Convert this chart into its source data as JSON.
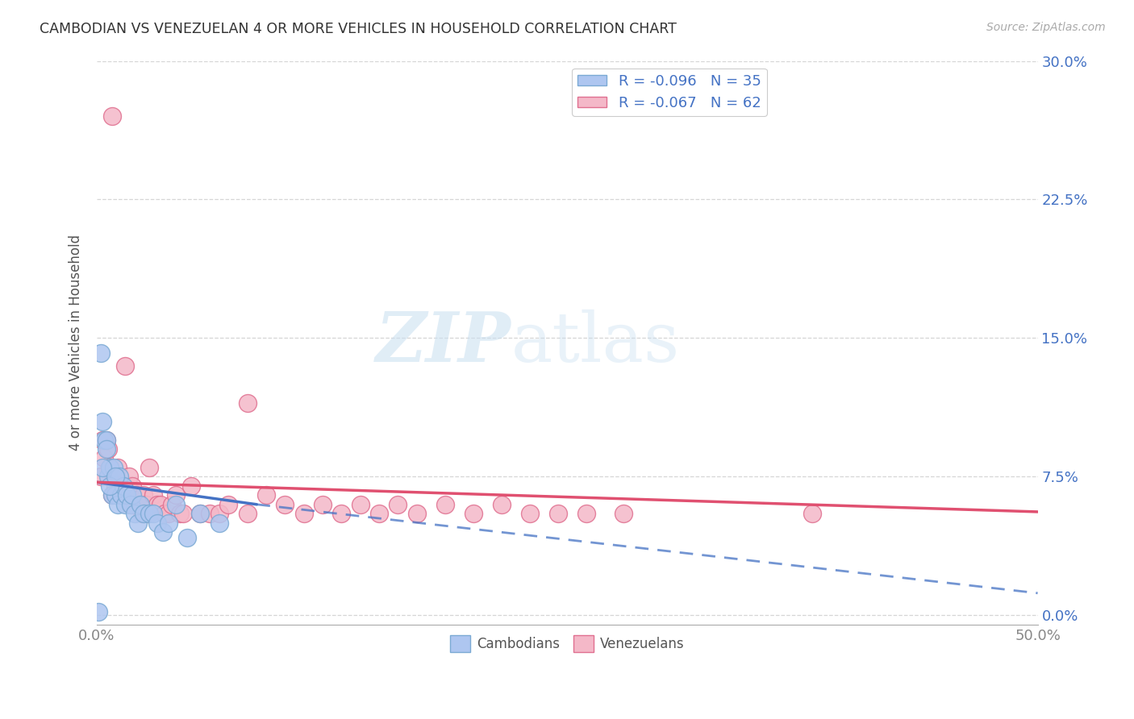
{
  "title": "CAMBODIAN VS VENEZUELAN 4 OR MORE VEHICLES IN HOUSEHOLD CORRELATION CHART",
  "source": "Source: ZipAtlas.com",
  "ylabel": "4 or more Vehicles in Household",
  "xlim": [
    0.0,
    0.5
  ],
  "ylim": [
    -0.005,
    0.3
  ],
  "xticks": [
    0.0,
    0.5
  ],
  "xticklabels": [
    "0.0%",
    "50.0%"
  ],
  "yticks": [
    0.0,
    0.075,
    0.15,
    0.225,
    0.3
  ],
  "yticklabels": [
    "0.0%",
    "7.5%",
    "15.0%",
    "22.5%",
    "30.0%"
  ],
  "cambodian_color": "#aec6f0",
  "venezuelan_color": "#f4b8c8",
  "cambodian_edge": "#7baad4",
  "venezuelan_edge": "#e07090",
  "trend_cambodian": "#4472c4",
  "trend_venezuelan": "#e05070",
  "legend_R_cambodian": "R = -0.096",
  "legend_N_cambodian": "N = 35",
  "legend_R_venezuelan": "R = -0.067",
  "legend_N_venezuelan": "N = 62",
  "watermark_zip": "ZIP",
  "watermark_atlas": "atlas",
  "background_color": "#ffffff",
  "grid_color": "#cccccc",
  "axis_label_color": "#4472c4",
  "tick_color": "#888888",
  "cambodian_points_x": [
    0.002,
    0.003,
    0.004,
    0.005,
    0.006,
    0.007,
    0.008,
    0.009,
    0.01,
    0.011,
    0.012,
    0.013,
    0.014,
    0.015,
    0.016,
    0.018,
    0.019,
    0.02,
    0.022,
    0.023,
    0.025,
    0.028,
    0.03,
    0.032,
    0.035,
    0.038,
    0.042,
    0.048,
    0.055,
    0.065,
    0.001,
    0.003,
    0.005,
    0.007,
    0.01
  ],
  "cambodian_points_y": [
    0.142,
    0.105,
    0.095,
    0.095,
    0.075,
    0.08,
    0.065,
    0.08,
    0.065,
    0.06,
    0.075,
    0.065,
    0.07,
    0.06,
    0.065,
    0.06,
    0.065,
    0.055,
    0.05,
    0.06,
    0.055,
    0.055,
    0.055,
    0.05,
    0.045,
    0.05,
    0.06,
    0.042,
    0.055,
    0.05,
    0.002,
    0.08,
    0.09,
    0.07,
    0.075
  ],
  "venezuelan_points_x": [
    0.002,
    0.003,
    0.004,
    0.005,
    0.006,
    0.007,
    0.008,
    0.009,
    0.01,
    0.011,
    0.012,
    0.013,
    0.014,
    0.015,
    0.016,
    0.017,
    0.018,
    0.019,
    0.02,
    0.021,
    0.022,
    0.023,
    0.024,
    0.025,
    0.026,
    0.027,
    0.028,
    0.03,
    0.032,
    0.034,
    0.036,
    0.038,
    0.04,
    0.042,
    0.044,
    0.046,
    0.05,
    0.055,
    0.06,
    0.065,
    0.07,
    0.08,
    0.09,
    0.1,
    0.11,
    0.12,
    0.13,
    0.14,
    0.15,
    0.16,
    0.17,
    0.185,
    0.2,
    0.215,
    0.23,
    0.245,
    0.26,
    0.28,
    0.38,
    0.008,
    0.015,
    0.08
  ],
  "venezuelan_points_y": [
    0.075,
    0.095,
    0.085,
    0.095,
    0.09,
    0.08,
    0.065,
    0.075,
    0.07,
    0.08,
    0.065,
    0.065,
    0.07,
    0.065,
    0.065,
    0.075,
    0.06,
    0.07,
    0.06,
    0.065,
    0.06,
    0.06,
    0.055,
    0.065,
    0.06,
    0.055,
    0.08,
    0.065,
    0.06,
    0.06,
    0.055,
    0.055,
    0.06,
    0.065,
    0.055,
    0.055,
    0.07,
    0.055,
    0.055,
    0.055,
    0.06,
    0.055,
    0.065,
    0.06,
    0.055,
    0.06,
    0.055,
    0.06,
    0.055,
    0.06,
    0.055,
    0.06,
    0.055,
    0.06,
    0.055,
    0.055,
    0.055,
    0.055,
    0.055,
    0.27,
    0.135,
    0.115
  ],
  "trend_cam_x0": 0.0,
  "trend_cam_y0": 0.072,
  "trend_cam_x1": 0.085,
  "trend_cam_y1": 0.06,
  "trend_cam_dash_x0": 0.085,
  "trend_cam_dash_y0": 0.06,
  "trend_cam_dash_x1": 0.5,
  "trend_cam_dash_y1": 0.012,
  "trend_ven_x0": 0.0,
  "trend_ven_y0": 0.072,
  "trend_ven_x1": 0.5,
  "trend_ven_y1": 0.056
}
